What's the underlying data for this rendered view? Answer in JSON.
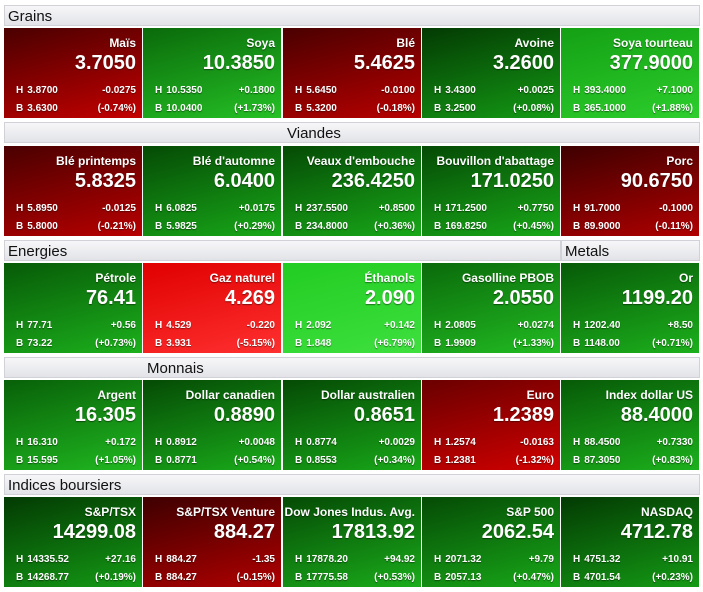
{
  "labels": {
    "high": "H",
    "low": "B"
  },
  "rows": [
    {
      "groups": [
        {
          "title": "Grains",
          "tiles": [
            {
              "name": "Maïs",
              "last": "3.7050",
              "high": "3.8700",
              "change": "-0.0275",
              "low": "3.6300",
              "percent": "(-0.74%)",
              "gradient": [
                "#4a0000",
                "#c40000"
              ]
            },
            {
              "name": "Soya",
              "last": "10.3850",
              "high": "10.5350",
              "change": "+0.1800",
              "low": "10.0400",
              "percent": "(+1.73%)",
              "gradient": [
                "#0a6a0a",
                "#25c025"
              ]
            },
            {
              "name": "Blé",
              "last": "5.4625",
              "high": "5.6450",
              "change": "-0.0100",
              "low": "5.3200",
              "percent": "(-0.18%)",
              "gradient": [
                "#4a0000",
                "#b80000"
              ]
            },
            {
              "name": "Avoine",
              "last": "3.2600",
              "high": "3.4300",
              "change": "+0.0025",
              "low": "3.2500",
              "percent": "(+0.08%)",
              "gradient": [
                "#033a03",
                "#149a14"
              ]
            },
            {
              "name": "Soya tourteau",
              "last": "377.9000",
              "high": "393.4000",
              "change": "+7.1000",
              "low": "365.1000",
              "percent": "(+1.88%)",
              "gradient": [
                "#14a014",
                "#2cce2c"
              ]
            }
          ]
        }
      ]
    },
    {
      "groups": [
        {
          "title": "Viandes",
          "tiles": [
            {
              "name": "Blé printemps",
              "last": "5.8325",
              "high": "5.8950",
              "change": "-0.0125",
              "low": "5.8000",
              "percent": "(-0.21%)",
              "gradient": [
                "#4a0000",
                "#b80000"
              ]
            },
            {
              "name": "Blé d'automne",
              "last": "6.0400",
              "high": "6.0825",
              "change": "+0.0175",
              "low": "5.9825",
              "percent": "(+0.29%)",
              "gradient": [
                "#054a05",
                "#18a818"
              ]
            },
            {
              "name": "Veaux d'embouche",
              "last": "236.4250",
              "high": "237.5500",
              "change": "+0.8500",
              "low": "234.8000",
              "percent": "(+0.36%)",
              "gradient": [
                "#054a05",
                "#18a818"
              ]
            },
            {
              "name": "Bouvillon d'abattage",
              "last": "171.0250",
              "high": "171.2500",
              "change": "+0.7750",
              "low": "169.8250",
              "percent": "(+0.45%)",
              "gradient": [
                "#054a05",
                "#18a818"
              ]
            },
            {
              "name": "Porc",
              "last": "90.6750",
              "high": "91.7000",
              "change": "-0.1000",
              "low": "89.9000",
              "percent": "(-0.11%)",
              "gradient": [
                "#3e0000",
                "#b00000"
              ]
            }
          ]
        }
      ]
    },
    {
      "groups": [
        {
          "title": "Energies",
          "tiles": [
            {
              "name": "Pétrole",
              "last": "76.41",
              "high": "77.71",
              "change": "+0.56",
              "low": "73.22",
              "percent": "(+0.73%)",
              "gradient": [
                "#075a07",
                "#1cb01c"
              ]
            },
            {
              "name": "Gaz naturel",
              "last": "4.269",
              "high": "4.529",
              "change": "-0.220",
              "low": "3.931",
              "percent": "(-5.15%)",
              "gradient": [
                "#e00000",
                "#ff3030"
              ]
            },
            {
              "name": "Éthanols",
              "last": "2.090",
              "high": "2.092",
              "change": "+0.142",
              "low": "1.848",
              "percent": "(+6.79%)",
              "gradient": [
                "#22cc22",
                "#3ee03e"
              ]
            },
            {
              "name": "Gasolline PBOB",
              "last": "2.0550",
              "high": "2.0805",
              "change": "+0.0274",
              "low": "1.9909",
              "percent": "(+1.33%)",
              "gradient": [
                "#0a6a0a",
                "#22bb22"
              ]
            }
          ]
        },
        {
          "title": "Metals",
          "tiles": [
            {
              "name": "Or",
              "last": "1199.20",
              "high": "1202.40",
              "change": "+8.50",
              "low": "1148.00",
              "percent": "(+0.71%)",
              "gradient": [
                "#075a07",
                "#1cb01c"
              ]
            }
          ]
        }
      ]
    },
    {
      "groups": [
        {
          "title": "Monnais",
          "tiles": [
            {
              "name": "Argent",
              "last": "16.305",
              "high": "16.310",
              "change": "+0.172",
              "low": "15.595",
              "percent": "(+1.05%)",
              "gradient": [
                "#086008",
                "#20b820"
              ]
            },
            {
              "name": "Dollar canadien",
              "last": "0.8890",
              "high": "0.8912",
              "change": "+0.0048",
              "low": "0.8771",
              "percent": "(+0.54%)",
              "gradient": [
                "#054a05",
                "#1aac1a"
              ]
            },
            {
              "name": "Dollar australien",
              "last": "0.8651",
              "high": "0.8774",
              "change": "+0.0029",
              "low": "0.8553",
              "percent": "(+0.34%)",
              "gradient": [
                "#054a05",
                "#18a818"
              ]
            },
            {
              "name": "Euro",
              "last": "1.2389",
              "high": "1.2574",
              "change": "-0.0163",
              "low": "1.2381",
              "percent": "(-1.32%)",
              "gradient": [
                "#6a0000",
                "#d00000"
              ]
            },
            {
              "name": "Index dollar US",
              "last": "88.4000",
              "high": "88.4500",
              "change": "+0.7330",
              "low": "87.3050",
              "percent": "(+0.83%)",
              "gradient": [
                "#075a07",
                "#1cb01c"
              ]
            }
          ]
        }
      ]
    },
    {
      "groups": [
        {
          "title": "Indices boursiers",
          "tiles": [
            {
              "name": "S&P/TSX",
              "last": "14299.08",
              "high": "14335.52",
              "change": "+27.16",
              "low": "14268.77",
              "percent": "(+0.19%)",
              "gradient": [
                "#033a03",
                "#149a14"
              ]
            },
            {
              "name": "S&P/TSX Venture",
              "last": "884.27",
              "high": "884.27",
              "change": "-1.35",
              "low": "884.27",
              "percent": "(-0.15%)",
              "gradient": [
                "#3e0000",
                "#b00000"
              ]
            },
            {
              "name": "Dow Jones Indus. Avg.",
              "last": "17813.92",
              "high": "17878.20",
              "change": "+94.92",
              "low": "17775.58",
              "percent": "(+0.53%)",
              "gradient": [
                "#054a05",
                "#1aac1a"
              ]
            },
            {
              "name": "S&P 500",
              "last": "2062.54",
              "high": "2071.32",
              "change": "+9.79",
              "low": "2057.13",
              "percent": "(+0.47%)",
              "gradient": [
                "#054a05",
                "#18a818"
              ]
            },
            {
              "name": "NASDAQ",
              "last": "4712.78",
              "high": "4751.32",
              "change": "+10.91",
              "low": "4701.54",
              "percent": "(+0.23%)",
              "gradient": [
                "#033a03",
                "#149a14"
              ]
            }
          ]
        }
      ]
    }
  ]
}
